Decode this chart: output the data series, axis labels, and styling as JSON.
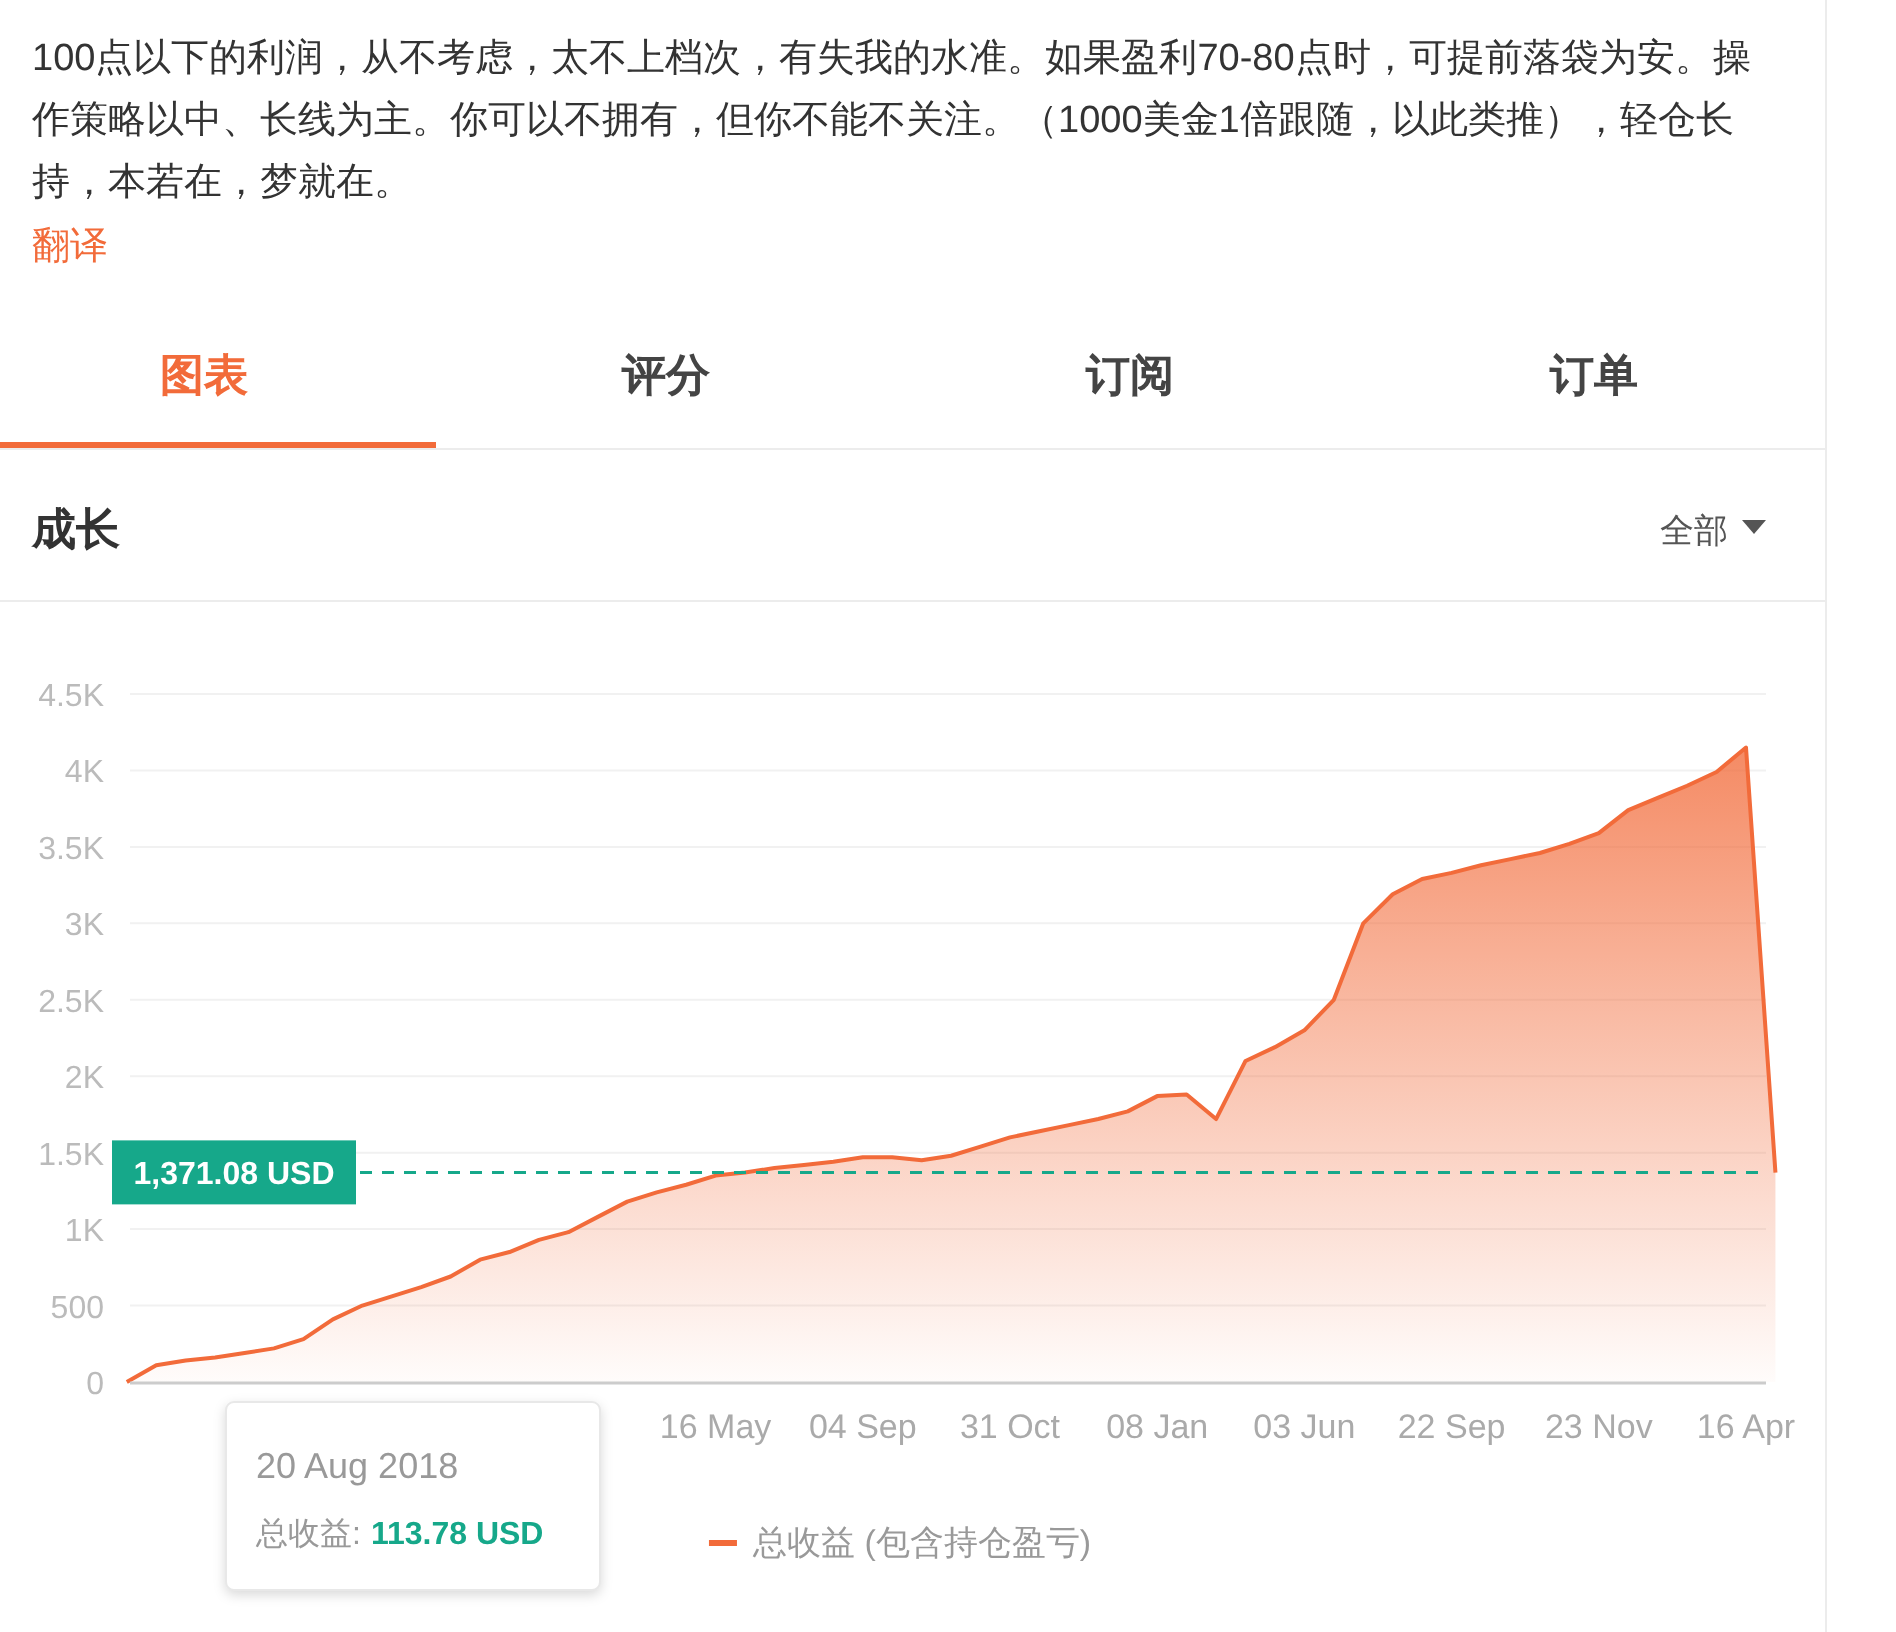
{
  "chart_data": {
    "type": "area",
    "title": "成长",
    "annotations": [
      "100点以下的利润，从不考虑，太不上档次，有失我的水准。如果盈利70-80点时，可提前落袋为安。操作策略以中、长线为主。你可以不拥有，但你不能不关注。（1000美金1倍跟随，以此类推），轻仓长持，本若在，梦就在。",
      "翻译",
      "图表",
      "评分",
      "订阅",
      "订单",
      "全部",
      "20 Aug 2018",
      "总收益:",
      "113.78 USD"
    ],
    "categories": [
      null,
      null,
      null,
      null,
      null,
      null,
      null,
      null,
      null,
      null,
      null,
      null,
      null,
      null,
      null,
      null,
      null,
      null,
      null,
      null,
      "16 May",
      null,
      null,
      null,
      null,
      "04 Sep",
      null,
      null,
      null,
      null,
      "31 Oct",
      null,
      null,
      null,
      null,
      "08 Jan",
      null,
      null,
      null,
      null,
      "03 Jun",
      null,
      null,
      null,
      null,
      "22 Sep",
      null,
      null,
      null,
      null,
      "23 Nov",
      null,
      null,
      null,
      null,
      "16 Apr",
      null
    ],
    "series": [
      {
        "name": "总收益 (包含持仓盈亏)",
        "color": "#f26b3a",
        "values": [
          0,
          110,
          140,
          160,
          190,
          220,
          280,
          410,
          500,
          560,
          620,
          690,
          800,
          850,
          930,
          980,
          1080,
          1180,
          1240,
          1290,
          1350,
          1370,
          1400,
          1420,
          1440,
          1470,
          1470,
          1450,
          1480,
          1540,
          1600,
          1640,
          1680,
          1720,
          1770,
          1870,
          1880,
          1720,
          2100,
          2190,
          2300,
          2500,
          3000,
          3190,
          3290,
          3330,
          3380,
          3420,
          3460,
          3520,
          3590,
          3740,
          3820,
          3900,
          3990,
          4150,
          1370
        ]
      }
    ],
    "ylim": [
      0,
      4500
    ],
    "yticks": [
      0,
      500,
      {
        "value": 1000,
        "label": "1K"
      },
      {
        "value": 1500,
        "label": "1.5K"
      },
      {
        "value": 2000,
        "label": "2K"
      },
      {
        "value": 2500,
        "label": "2.5K"
      },
      {
        "value": 3000,
        "label": "3K"
      },
      {
        "value": 3500,
        "label": "3.5K"
      },
      {
        "value": 4000,
        "label": "4K"
      },
      {
        "value": 4500,
        "label": "4.5K"
      }
    ],
    "grid": "y",
    "legend": "bottom",
    "ref_lines": [
      {
        "axis": "y",
        "value": 1371.08,
        "label": "1,371.08 USD",
        "color": "#16a88a",
        "line_style": "dashed"
      }
    ]
  }
}
